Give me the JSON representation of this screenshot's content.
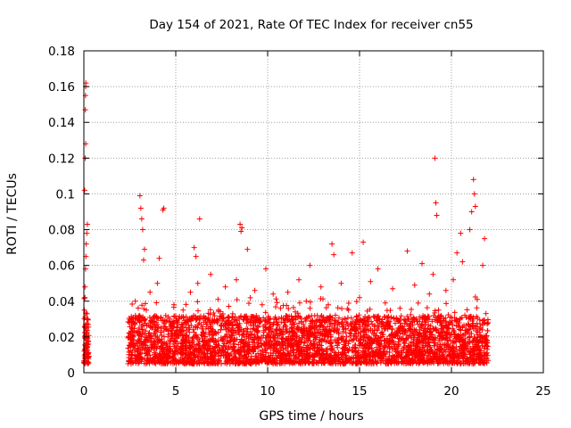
{
  "chart_data": {
    "type": "scatter",
    "title": "Day 154 of 2021, Rate Of TEC Index for receiver cn55",
    "xlabel": "GPS time / hours",
    "ylabel": "ROTI / TECUs",
    "xlim": [
      0,
      25
    ],
    "ylim": [
      0,
      0.18
    ],
    "xticks": [
      0,
      5,
      10,
      15,
      20,
      25
    ],
    "xtick_labels": [
      "0",
      "5",
      "10",
      "15",
      "20",
      "25"
    ],
    "yticks": [
      0,
      0.02,
      0.04,
      0.06,
      0.08,
      0.1,
      0.12,
      0.14,
      0.16,
      0.18
    ],
    "ytick_labels": [
      "0",
      "0.02",
      "0.04",
      "0.06",
      "0.08",
      "0.1",
      "0.12",
      "0.14",
      "0.16",
      "0.18"
    ],
    "grid": true,
    "marker": "+",
    "colors": {
      "points": "#ff0000",
      "grid": "#a0a0a0",
      "axes": "#000000"
    },
    "series": [
      {
        "points": [
          [
            0.02,
            0.012
          ],
          [
            0.05,
            0.02
          ],
          [
            0.08,
            0.015
          ],
          [
            0.1,
            0.025
          ],
          [
            0.12,
            0.018
          ],
          [
            0.15,
            0.022
          ],
          [
            0.18,
            0.014
          ],
          [
            0.2,
            0.019
          ],
          [
            0.22,
            0.03
          ],
          [
            0.25,
            0.016
          ],
          [
            0.03,
            0.035
          ],
          [
            0.06,
            0.048
          ],
          [
            0.09,
            0.058
          ],
          [
            0.11,
            0.065
          ],
          [
            0.13,
            0.072
          ],
          [
            0.16,
            0.078
          ],
          [
            0.19,
            0.083
          ],
          [
            0.04,
            0.102
          ],
          [
            0.07,
            0.12
          ],
          [
            0.1,
            0.128
          ],
          [
            0.08,
            0.147
          ],
          [
            0.09,
            0.155
          ],
          [
            0.1,
            0.16
          ],
          [
            0.11,
            0.162
          ],
          [
            0.05,
            0.008
          ],
          [
            0.14,
            0.01
          ],
          [
            0.21,
            0.009
          ],
          [
            0.24,
            0.027
          ],
          [
            0.17,
            0.033
          ],
          [
            0.06,
            0.042
          ],
          [
            2.5,
            0.015
          ],
          [
            2.6,
            0.03
          ],
          [
            2.7,
            0.02
          ],
          [
            2.8,
            0.04
          ],
          [
            2.9,
            0.012
          ],
          [
            3.0,
            0.025
          ],
          [
            3.05,
            0.099
          ],
          [
            3.1,
            0.092
          ],
          [
            3.15,
            0.086
          ],
          [
            3.2,
            0.08
          ],
          [
            3.3,
            0.069
          ],
          [
            3.25,
            0.063
          ],
          [
            3.4,
            0.035
          ],
          [
            3.5,
            0.018
          ],
          [
            3.6,
            0.045
          ],
          [
            3.8,
            0.022
          ],
          [
            4.0,
            0.05
          ],
          [
            4.1,
            0.064
          ],
          [
            4.2,
            0.031
          ],
          [
            4.3,
            0.091
          ],
          [
            4.35,
            0.092
          ],
          [
            4.5,
            0.016
          ],
          [
            4.7,
            0.028
          ],
          [
            4.9,
            0.038
          ],
          [
            5.0,
            0.012
          ],
          [
            5.2,
            0.024
          ],
          [
            5.4,
            0.035
          ],
          [
            5.6,
            0.019
          ],
          [
            5.8,
            0.045
          ],
          [
            6.0,
            0.07
          ],
          [
            6.1,
            0.065
          ],
          [
            6.2,
            0.05
          ],
          [
            6.3,
            0.086
          ],
          [
            6.5,
            0.022
          ],
          [
            6.7,
            0.03
          ],
          [
            6.9,
            0.055
          ],
          [
            7.1,
            0.017
          ],
          [
            7.3,
            0.041
          ],
          [
            7.5,
            0.026
          ],
          [
            7.7,
            0.048
          ],
          [
            7.9,
            0.014
          ],
          [
            8.1,
            0.033
          ],
          [
            8.3,
            0.052
          ],
          [
            8.5,
            0.083
          ],
          [
            8.6,
            0.081
          ],
          [
            8.55,
            0.079
          ],
          [
            8.7,
            0.021
          ],
          [
            8.9,
            0.069
          ],
          [
            9.1,
            0.03
          ],
          [
            9.3,
            0.046
          ],
          [
            9.5,
            0.018
          ],
          [
            9.7,
            0.038
          ],
          [
            9.9,
            0.058
          ],
          [
            10.1,
            0.024
          ],
          [
            10.3,
            0.044
          ],
          [
            10.5,
            0.016
          ],
          [
            10.7,
            0.036
          ],
          [
            10.9,
            0.028
          ],
          [
            11.1,
            0.045
          ],
          [
            11.3,
            0.019
          ],
          [
            11.5,
            0.034
          ],
          [
            11.7,
            0.052
          ],
          [
            11.9,
            0.023
          ],
          [
            12.1,
            0.04
          ],
          [
            12.3,
            0.06
          ],
          [
            12.5,
            0.015
          ],
          [
            12.7,
            0.032
          ],
          [
            12.9,
            0.048
          ],
          [
            13.1,
            0.021
          ],
          [
            13.3,
            0.038
          ],
          [
            13.5,
            0.072
          ],
          [
            13.6,
            0.066
          ],
          [
            13.8,
            0.027
          ],
          [
            14.0,
            0.05
          ],
          [
            14.2,
            0.017
          ],
          [
            14.4,
            0.035
          ],
          [
            14.6,
            0.067
          ],
          [
            14.8,
            0.024
          ],
          [
            15.0,
            0.042
          ],
          [
            15.2,
            0.073
          ],
          [
            15.4,
            0.02
          ],
          [
            15.6,
            0.051
          ],
          [
            15.8,
            0.031
          ],
          [
            16.0,
            0.058
          ],
          [
            16.2,
            0.016
          ],
          [
            16.4,
            0.039
          ],
          [
            16.6,
            0.026
          ],
          [
            16.8,
            0.047
          ],
          [
            17.0,
            0.022
          ],
          [
            17.2,
            0.036
          ],
          [
            17.4,
            0.018
          ],
          [
            17.6,
            0.068
          ],
          [
            17.8,
            0.03
          ],
          [
            18.0,
            0.049
          ],
          [
            18.2,
            0.021
          ],
          [
            18.4,
            0.061
          ],
          [
            18.6,
            0.027
          ],
          [
            18.8,
            0.044
          ],
          [
            19.0,
            0.055
          ],
          [
            19.1,
            0.12
          ],
          [
            19.15,
            0.095
          ],
          [
            19.2,
            0.088
          ],
          [
            19.3,
            0.035
          ],
          [
            19.5,
            0.019
          ],
          [
            19.7,
            0.046
          ],
          [
            19.9,
            0.028
          ],
          [
            20.1,
            0.052
          ],
          [
            20.3,
            0.067
          ],
          [
            20.5,
            0.078
          ],
          [
            20.6,
            0.062
          ],
          [
            20.8,
            0.031
          ],
          [
            21.0,
            0.08
          ],
          [
            21.1,
            0.09
          ],
          [
            21.2,
            0.108
          ],
          [
            21.25,
            0.1
          ],
          [
            21.3,
            0.093
          ],
          [
            21.4,
            0.041
          ],
          [
            21.6,
            0.025
          ],
          [
            21.7,
            0.06
          ],
          [
            21.8,
            0.075
          ],
          [
            21.9,
            0.02
          ],
          [
            21.95,
            0.013
          ]
        ]
      }
    ],
    "noise_band": {
      "segments": [
        [
          0,
          0.28
        ],
        [
          2.4,
          22.0
        ]
      ],
      "y_low": 0.005,
      "y_high": 0.032,
      "count": 3600
    }
  }
}
